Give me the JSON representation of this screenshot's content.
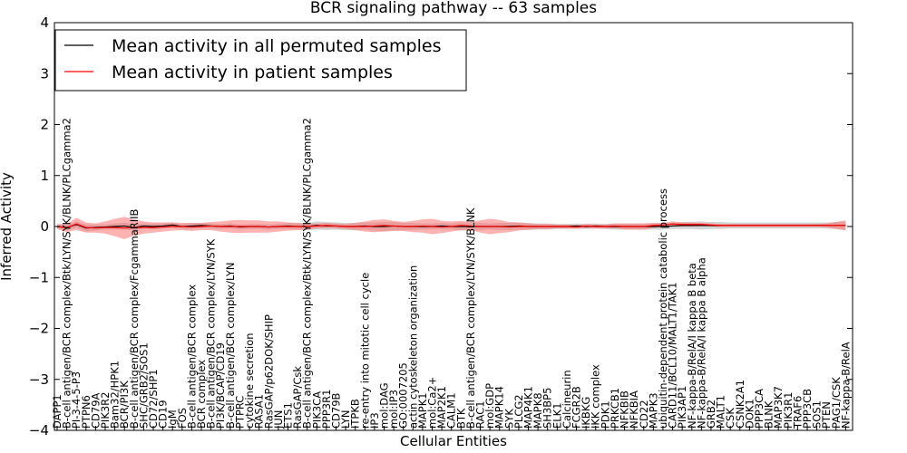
{
  "chart_data": {
    "type": "line",
    "title": "BCR signaling pathway -- 63 samples",
    "xlabel": "Cellular Entities",
    "ylabel": "Inferred Activity",
    "ylim": [
      -4,
      4
    ],
    "yticks": [
      "4",
      "3",
      "2",
      "1",
      "0",
      "−1",
      "−2",
      "−3",
      "−4"
    ],
    "legend": {
      "placement": "top-left",
      "entries": [
        {
          "name": "Mean activity in all permuted samples",
          "color": "#000000"
        },
        {
          "name": "Mean activity in patient samples",
          "color": "#ff0000"
        }
      ]
    },
    "categories": [
      "DAPP1",
      "B-cell antigen/BCR complex/Btk/LYN/SYK/BLNK/PLCgamma2",
      "PI-3-4-5-P3",
      "PTPN6",
      "CD79A",
      "PIK3R2",
      "Bam32/HPK1",
      "BCR/PI3K",
      "B-cell antigen/BCR complex/FcgammaRIIB",
      "SHC/GRB2/SOS1",
      "CD72/SHP1",
      "CD19",
      "IgM",
      "FOS",
      "B-cell antigen/BCR complex",
      "BCR complex",
      "B-cell antigen/BCR complex/LYN/SYK",
      "PI3K/BCAP/CD19",
      "B-cell antigen/BCR complex/LYN",
      "PTPRC",
      "cytokine secretion",
      "RASA1",
      "RasGAP/p62DOK/SHIP",
      "JUN",
      "ETS1",
      "RasGAP/Csk",
      "B-cell antigen/BCR complex/Btk/LYN/SYK/BLNK/PLCgamma2",
      "PIK3CA",
      "PPP3R1",
      "CD79B",
      "LYN",
      "ITPKB",
      "re-entry into mitotic cell cycle",
      "IP3",
      "mol:DAG",
      "mol:IP3",
      "GO:0007205",
      "actin cytoskeleton organization",
      "MAPK1",
      "mol:Ca2+",
      "MAP2K1",
      "CALM1",
      "BTK",
      "B-cell antigen/BCR complex/LYN/SYK/BLNK",
      "RAC1",
      "mol:GDP",
      "MAPK14",
      "SYK",
      "PLCG2",
      "MAP4K1",
      "MAPK8",
      "SH3BP5",
      "ELK1",
      "Calcineurin",
      "FCGR2B",
      "IKBKG",
      "IKK complex",
      "PDK1",
      "PRKCB1",
      "NFKBIB",
      "NFKBIA",
      "CD22",
      "MAPK3",
      "ubiquitin-dependent protein catabolic process",
      "CARD11/BCL10/MALT1/TAK1",
      "PIK3AP1",
      "NF-kappa-B/RelA/I kappa B beta",
      "NF-kappa-B/RelA/I kappa B alpha",
      "GRB2",
      "MALT1",
      "CSK",
      "CSNK2A1",
      "DOK1",
      "PPP3CA",
      "BLNK",
      "MAP3K7",
      "PIK3R1",
      "TRAF6",
      "PPP3CB",
      "SOS1",
      "PTEN",
      "PAG1/CSK",
      "NF-kappa-B/RelA"
    ],
    "series": [
      {
        "name": "Mean activity in all permuted samples",
        "values": [
          0.0,
          -0.02,
          0.04,
          -0.03,
          -0.02,
          -0.01,
          0.0,
          0.01,
          -0.02,
          0.01,
          0.0,
          0.01,
          0.03,
          0.0,
          0.01,
          0.02,
          0.01,
          0.0,
          0.01,
          -0.01,
          0.0,
          0.0,
          -0.01,
          0.0,
          0.01,
          0.0,
          0.0,
          0.02,
          0.01,
          0.01,
          0.0,
          0.0,
          0.01,
          0.0,
          0.0,
          0.01,
          0.0,
          0.0,
          0.0,
          0.0,
          0.01,
          0.0,
          0.0,
          0.0,
          0.0,
          0.0,
          0.0,
          0.0,
          0.01,
          0.0,
          0.0,
          0.0,
          0.0,
          0.0,
          0.01,
          0.0,
          0.01,
          0.0,
          0.0,
          0.0,
          0.0,
          0.0,
          0.0,
          0.0,
          0.01,
          0.02,
          0.02,
          0.02,
          0.02,
          0.02,
          0.02,
          0.02,
          0.02,
          0.02,
          0.02,
          0.02,
          0.02,
          0.02,
          0.02,
          0.02,
          0.02,
          0.02,
          0.02
        ]
      },
      {
        "name": "Mean activity in patient samples",
        "values": [
          0.0,
          -0.03,
          0.05,
          -0.02,
          -0.03,
          -0.02,
          -0.02,
          -0.03,
          -0.02,
          -0.02,
          -0.02,
          -0.01,
          0.0,
          0.0,
          -0.01,
          0.0,
          0.01,
          0.0,
          0.0,
          0.0,
          0.0,
          0.0,
          -0.01,
          0.0,
          0.0,
          0.0,
          0.0,
          0.01,
          0.02,
          0.01,
          0.0,
          0.0,
          0.0,
          0.01,
          0.02,
          0.01,
          0.0,
          0.0,
          0.01,
          0.0,
          -0.01,
          0.0,
          0.02,
          0.01,
          0.0,
          0.0,
          0.0,
          -0.01,
          0.0,
          0.0,
          0.0,
          0.0,
          0.0,
          0.0,
          -0.01,
          0.01,
          0.0,
          0.0,
          0.01,
          0.0,
          0.0,
          0.0,
          0.02,
          0.03,
          0.05,
          0.04,
          0.04,
          0.04,
          0.03,
          0.02,
          0.02,
          0.02,
          0.02,
          0.02,
          0.02,
          0.02,
          0.02,
          0.02,
          0.02,
          0.02,
          0.02,
          0.02,
          0.02
        ]
      }
    ],
    "bands": [
      {
        "series": "Mean activity in all permuted samples",
        "color": "#888888",
        "halfwidth": [
          0.04,
          0.05,
          0.06,
          0.07,
          0.06,
          0.05,
          0.06,
          0.07,
          0.06,
          0.05,
          0.06,
          0.05,
          0.05,
          0.05,
          0.06,
          0.05,
          0.05,
          0.05,
          0.05,
          0.05,
          0.05,
          0.05,
          0.05,
          0.05,
          0.06,
          0.06,
          0.07,
          0.08,
          0.08,
          0.07,
          0.07,
          0.07,
          0.07,
          0.08,
          0.09,
          0.08,
          0.07,
          0.07,
          0.06,
          0.06,
          0.06,
          0.06,
          0.08,
          0.08,
          0.07,
          0.06,
          0.07,
          0.07,
          0.07,
          0.07,
          0.06,
          0.06,
          0.05,
          0.05,
          0.05,
          0.05,
          0.05,
          0.05,
          0.06,
          0.06,
          0.06,
          0.06,
          0.06,
          0.06,
          0.06,
          0.07,
          0.07,
          0.08,
          0.07,
          0.07,
          0.06,
          0.06,
          0.06,
          0.06,
          0.06,
          0.06,
          0.06,
          0.06,
          0.06,
          0.06,
          0.06,
          0.07,
          0.08
        ]
      },
      {
        "series": "Mean activity in patient samples",
        "color": "#ff6666",
        "halfwidth": [
          0.05,
          0.08,
          0.12,
          0.1,
          0.09,
          0.12,
          0.17,
          0.22,
          0.16,
          0.12,
          0.1,
          0.09,
          0.08,
          0.07,
          0.08,
          0.07,
          0.08,
          0.1,
          0.12,
          0.13,
          0.12,
          0.12,
          0.11,
          0.1,
          0.08,
          0.07,
          0.06,
          0.05,
          0.05,
          0.05,
          0.05,
          0.07,
          0.1,
          0.12,
          0.12,
          0.1,
          0.09,
          0.11,
          0.13,
          0.15,
          0.12,
          0.1,
          0.09,
          0.08,
          0.12,
          0.15,
          0.13,
          0.1,
          0.08,
          0.06,
          0.05,
          0.05,
          0.04,
          0.04,
          0.04,
          0.04,
          0.04,
          0.04,
          0.05,
          0.06,
          0.06,
          0.06,
          0.05,
          0.04,
          0.05,
          0.04,
          0.04,
          0.03,
          0.03,
          0.03,
          0.03,
          0.03,
          0.03,
          0.03,
          0.03,
          0.03,
          0.03,
          0.03,
          0.03,
          0.03,
          0.04,
          0.07,
          0.1
        ]
      }
    ]
  }
}
